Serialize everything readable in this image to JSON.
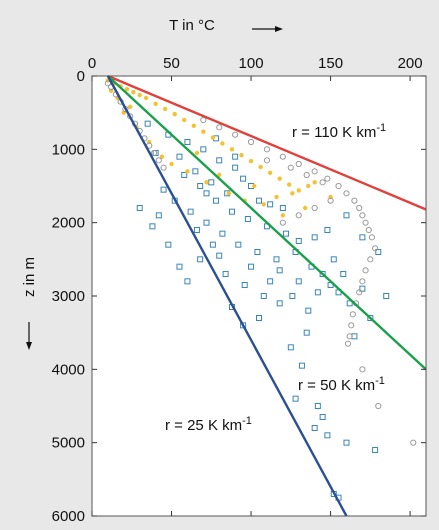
{
  "chart_data": {
    "type": "scatter",
    "xlabel": "T in °C",
    "ylabel": "z in m",
    "x_axis_position": "top",
    "y_axis_inverted": true,
    "xlim": [
      0,
      210
    ],
    "ylim": [
      6000,
      0
    ],
    "x_ticks": [
      0,
      50,
      100,
      150,
      200
    ],
    "x_tick_labels": [
      "0",
      "50",
      "100",
      "150",
      "200"
    ],
    "y_ticks": [
      0,
      1000,
      2000,
      3000,
      4000,
      5000,
      6000
    ],
    "y_tick_labels": [
      "0",
      "1000",
      "2000",
      "3000",
      "4000",
      "5000",
      "6000"
    ],
    "grid": false,
    "colors": {
      "background": "#e8e8e8",
      "plot_area": "#ffffff",
      "red_line": "#e2403a",
      "green_line": "#1aa04a",
      "blue_line": "#2b4f95",
      "blue_squares": "#3a86b8",
      "yellow_points": "#f2c230",
      "grey_circles": "#9a9a9a"
    },
    "gradient_lines": [
      {
        "label": "r = 110 K km",
        "exponent": "-1",
        "color": "#e2403a",
        "x": [
          10,
          210
        ],
        "y": [
          0,
          1820
        ]
      },
      {
        "label": "r = 50 K km",
        "exponent": "-1",
        "color": "#1aa04a",
        "x": [
          10,
          210
        ],
        "y": [
          0,
          4000
        ]
      },
      {
        "label": "r = 25 K km",
        "exponent": "-1",
        "color": "#2b4f95",
        "x": [
          10,
          160
        ],
        "y": [
          0,
          6000
        ]
      }
    ],
    "series": [
      {
        "marker": "open-square",
        "color": "#3a86b8",
        "points": [
          [
            35,
            650
          ],
          [
            48,
            800
          ],
          [
            60,
            900
          ],
          [
            70,
            1000
          ],
          [
            80,
            1150
          ],
          [
            90,
            1250
          ],
          [
            95,
            1400
          ],
          [
            100,
            1500
          ],
          [
            40,
            1050
          ],
          [
            55,
            1100
          ],
          [
            65,
            1300
          ],
          [
            75,
            1450
          ],
          [
            85,
            1600
          ],
          [
            105,
            1700
          ],
          [
            112,
            1750
          ],
          [
            120,
            1800
          ],
          [
            58,
            1350
          ],
          [
            68,
            1500
          ],
          [
            78,
            1700
          ],
          [
            88,
            1850
          ],
          [
            98,
            1950
          ],
          [
            110,
            2050
          ],
          [
            122,
            2150
          ],
          [
            130,
            2250
          ],
          [
            45,
            1550
          ],
          [
            52,
            1700
          ],
          [
            62,
            1850
          ],
          [
            72,
            2000
          ],
          [
            82,
            2150
          ],
          [
            92,
            2300
          ],
          [
            104,
            2400
          ],
          [
            116,
            2500
          ],
          [
            128,
            2400
          ],
          [
            138,
            2600
          ],
          [
            145,
            2700
          ],
          [
            150,
            2850
          ],
          [
            155,
            2950
          ],
          [
            140,
            2200
          ],
          [
            148,
            2100
          ],
          [
            160,
            1900
          ],
          [
            170,
            2200
          ],
          [
            180,
            2400
          ],
          [
            185,
            3000
          ],
          [
            175,
            3300
          ],
          [
            165,
            3550
          ],
          [
            30,
            1800
          ],
          [
            38,
            2050
          ],
          [
            68,
            2500
          ],
          [
            84,
            2700
          ],
          [
            96,
            2850
          ],
          [
            108,
            3000
          ],
          [
            118,
            3100
          ],
          [
            88,
            3150
          ],
          [
            76,
            2300
          ],
          [
            100,
            2600
          ],
          [
            112,
            2800
          ],
          [
            126,
            3000
          ],
          [
            136,
            3200
          ],
          [
            142,
            2950
          ],
          [
            152,
            2500
          ],
          [
            158,
            2700
          ],
          [
            162,
            3100
          ],
          [
            170,
            2900
          ],
          [
            125,
            3700
          ],
          [
            132,
            3950
          ],
          [
            128,
            4400
          ],
          [
            142,
            4500
          ],
          [
            145,
            4650
          ],
          [
            140,
            4800
          ],
          [
            148,
            4900
          ],
          [
            160,
            5000
          ],
          [
            178,
            5100
          ],
          [
            152,
            5700
          ],
          [
            155,
            5750
          ],
          [
            60,
            2800
          ],
          [
            55,
            2600
          ],
          [
            48,
            2300
          ],
          [
            42,
            1900
          ],
          [
            66,
            2100
          ],
          [
            118,
            2650
          ],
          [
            130,
            2800
          ],
          [
            135,
            3500
          ],
          [
            105,
            3300
          ],
          [
            95,
            3400
          ],
          [
            80,
            2450
          ],
          [
            72,
            1600
          ],
          [
            90,
            1100
          ],
          [
            78,
            850
          ]
        ]
      },
      {
        "marker": "dot",
        "color": "#f2c230",
        "points": [
          [
            10,
            60
          ],
          [
            14,
            100
          ],
          [
            18,
            140
          ],
          [
            22,
            180
          ],
          [
            26,
            220
          ],
          [
            30,
            260
          ],
          [
            34,
            300
          ],
          [
            40,
            380
          ],
          [
            46,
            450
          ],
          [
            52,
            520
          ],
          [
            58,
            600
          ],
          [
            64,
            680
          ],
          [
            70,
            760
          ],
          [
            76,
            840
          ],
          [
            82,
            920
          ],
          [
            88,
            1000
          ],
          [
            94,
            1080
          ],
          [
            100,
            1160
          ],
          [
            106,
            1240
          ],
          [
            112,
            1320
          ],
          [
            118,
            1400
          ],
          [
            124,
            1480
          ],
          [
            130,
            1560
          ],
          [
            20,
            500
          ],
          [
            28,
            700
          ],
          [
            36,
            900
          ],
          [
            44,
            1100
          ],
          [
            60,
            1300
          ],
          [
            72,
            1450
          ],
          [
            86,
            1600
          ],
          [
            96,
            1700
          ],
          [
            108,
            1750
          ],
          [
            116,
            1650
          ],
          [
            126,
            1600
          ],
          [
            136,
            1500
          ],
          [
            140,
            1450
          ],
          [
            50,
            1200
          ],
          [
            66,
            1050
          ],
          [
            80,
            1350
          ],
          [
            102,
            1500
          ],
          [
            120,
            1900
          ],
          [
            134,
            1800
          ],
          [
            150,
            1650
          ],
          [
            12,
            200
          ],
          [
            16,
            300
          ],
          [
            24,
            420
          ]
        ]
      },
      {
        "marker": "open-circle",
        "color": "#9a9a9a",
        "points": [
          [
            10,
            100
          ],
          [
            12,
            150
          ],
          [
            15,
            250
          ],
          [
            18,
            350
          ],
          [
            21,
            450
          ],
          [
            24,
            550
          ],
          [
            27,
            650
          ],
          [
            30,
            750
          ],
          [
            33,
            850
          ],
          [
            36,
            950
          ],
          [
            39,
            1050
          ],
          [
            42,
            1150
          ],
          [
            45,
            1250
          ],
          [
            70,
            600
          ],
          [
            80,
            700
          ],
          [
            90,
            800
          ],
          [
            100,
            900
          ],
          [
            110,
            1000
          ],
          [
            120,
            1100
          ],
          [
            130,
            1200
          ],
          [
            140,
            1300
          ],
          [
            148,
            1400
          ],
          [
            155,
            1500
          ],
          [
            160,
            1600
          ],
          [
            165,
            1700
          ],
          [
            168,
            1800
          ],
          [
            170,
            1900
          ],
          [
            172,
            2000
          ],
          [
            174,
            2100
          ],
          [
            176,
            2200
          ],
          [
            178,
            2350
          ],
          [
            175,
            2500
          ],
          [
            172,
            2650
          ],
          [
            170,
            2800
          ],
          [
            168,
            2950
          ],
          [
            166,
            3100
          ],
          [
            164,
            3250
          ],
          [
            163,
            3400
          ],
          [
            162,
            3550
          ],
          [
            161,
            3650
          ],
          [
            150,
            1700
          ],
          [
            140,
            1800
          ],
          [
            130,
            1900
          ],
          [
            120,
            2000
          ],
          [
            170,
            4000
          ],
          [
            180,
            4500
          ],
          [
            202,
            5000
          ],
          [
            110,
            1150
          ],
          [
            125,
            1250
          ],
          [
            135,
            1350
          ],
          [
            145,
            1450
          ]
        ]
      }
    ]
  }
}
